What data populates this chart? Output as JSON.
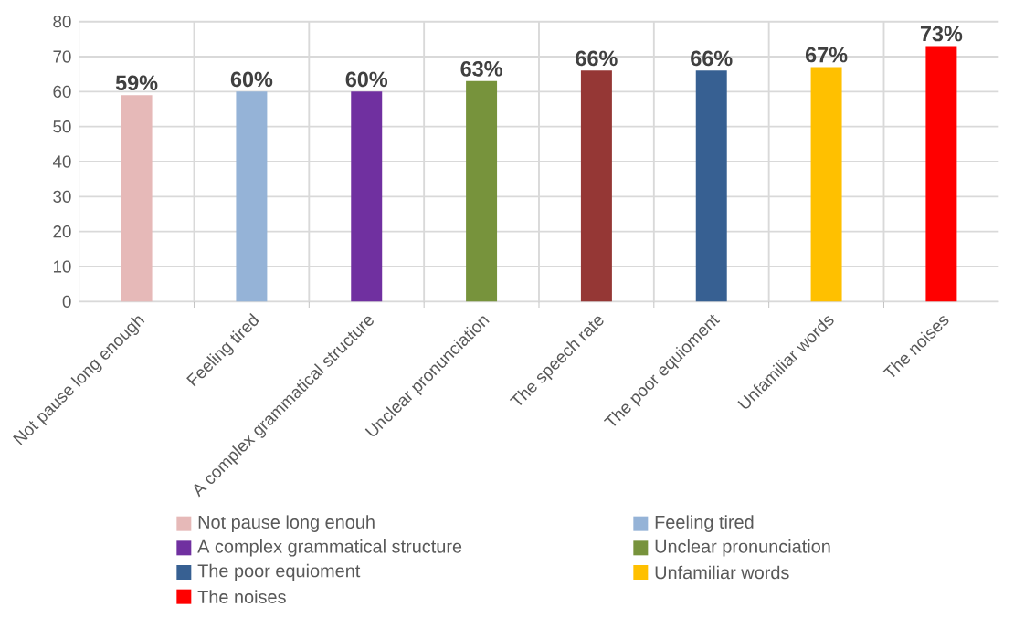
{
  "chart_data": {
    "type": "bar",
    "categories": [
      "Not pause long enough",
      "Feeling tired",
      "A complex grammatical structure",
      "Unclear pronunciation",
      "The speech rate",
      "The poor equioment",
      "Unfamiliar words",
      "The noises"
    ],
    "series": [
      {
        "name": "Not pause long enouh",
        "color": "#e6b9b8",
        "values": [
          59,
          null,
          null,
          null,
          null,
          null,
          null,
          null
        ],
        "value_labels": [
          "59%",
          null,
          null,
          null,
          null,
          null,
          null,
          null
        ]
      },
      {
        "name": "Feeling tired",
        "color": "#95b3d7",
        "values": [
          null,
          60,
          null,
          null,
          null,
          null,
          null,
          null
        ],
        "value_labels": [
          null,
          "60%",
          null,
          null,
          null,
          null,
          null,
          null
        ]
      },
      {
        "name": "A complex grammatical structure",
        "color": "#7030a0",
        "values": [
          null,
          null,
          60,
          null,
          null,
          null,
          null,
          null
        ],
        "value_labels": [
          null,
          null,
          "60%",
          null,
          null,
          null,
          null,
          null
        ]
      },
      {
        "name": "Unclear pronunciation",
        "color": "#77933c",
        "values": [
          null,
          null,
          null,
          63,
          null,
          null,
          null,
          null
        ],
        "value_labels": [
          null,
          null,
          null,
          "63%",
          null,
          null,
          null,
          null
        ]
      },
      {
        "color": "#953735",
        "values": [
          null,
          null,
          null,
          null,
          66,
          null,
          null,
          null
        ],
        "value_labels": [
          null,
          null,
          null,
          null,
          "66%",
          null,
          null,
          null
        ]
      },
      {
        "name": "The poor equioment",
        "color": "#376092",
        "values": [
          null,
          null,
          null,
          null,
          null,
          66,
          null,
          null
        ],
        "value_labels": [
          null,
          null,
          null,
          null,
          null,
          "66%",
          null,
          null
        ]
      },
      {
        "name": "Unfamiliar words",
        "color": "#ffc000",
        "values": [
          null,
          null,
          null,
          null,
          null,
          null,
          67,
          null
        ],
        "value_labels": [
          null,
          null,
          null,
          null,
          null,
          null,
          "67%",
          null
        ]
      },
      {
        "name": "The noises",
        "color": "#ff0000",
        "values": [
          null,
          null,
          null,
          null,
          null,
          null,
          null,
          73
        ],
        "value_labels": [
          null,
          null,
          null,
          null,
          null,
          null,
          null,
          "73%"
        ]
      }
    ],
    "ylim": [
      0,
      80
    ],
    "yticks": [
      0,
      10,
      20,
      30,
      40,
      50,
      60,
      70,
      80
    ],
    "grid": true,
    "legend": "bottom"
  }
}
